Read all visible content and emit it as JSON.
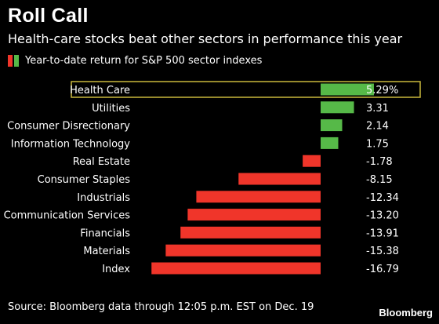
{
  "title": "Roll Call",
  "subtitle": "Health-care stocks beat other sectors in performance this year",
  "legend": {
    "label": "Year-to-date return for S&P 500 sector indexes"
  },
  "source": "Source: Bloomberg data through 12:05 p.m. EST on Dec. 19",
  "brand": "Bloomberg",
  "colors": {
    "positive": "#56b948",
    "negative": "#f0352a",
    "highlight": "#c9b83c",
    "text": "#ffffff",
    "background": "#000000"
  },
  "chart_data": {
    "type": "bar",
    "orientation": "horizontal",
    "categories": [
      "Health Care",
      "Utilities",
      "Consumer Disrectionary",
      "Information Technology",
      "Real Estate",
      "Consumer Staples",
      "Industrials",
      "Communication Services",
      "Financials",
      "Materials",
      "Index"
    ],
    "values": [
      5.29,
      3.31,
      2.14,
      1.75,
      -1.78,
      -8.15,
      -12.34,
      -13.2,
      -13.91,
      -15.38,
      -16.79
    ],
    "value_labels": [
      "5.29%",
      "3.31",
      "2.14",
      "1.75",
      "-1.78",
      "-8.15",
      "-12.34",
      "-13.20",
      "-13.91",
      "-15.38",
      "-16.79"
    ],
    "highlighted_category": "Health Care",
    "xlim": [
      -17.5,
      6.5
    ]
  }
}
